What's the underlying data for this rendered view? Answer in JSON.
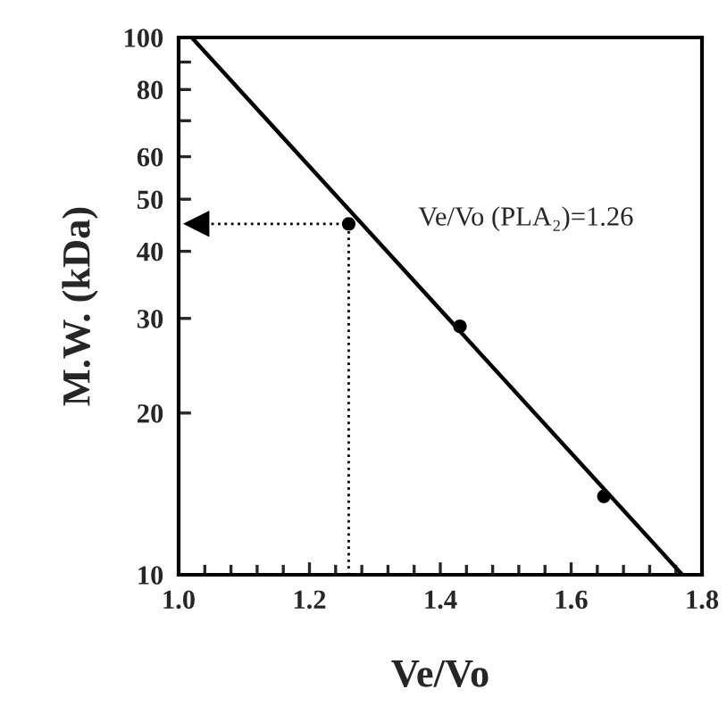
{
  "chart_data": {
    "type": "scatter",
    "xlabel": "Ve/Vo",
    "ylabel": "M.W. (kDa)",
    "log": "y",
    "marker": "circle",
    "grid": false,
    "legend": false,
    "series": [
      {
        "color": "#000000",
        "x": [
          1.26,
          1.43,
          1.65
        ],
        "values": [
          45,
          29,
          14
        ]
      },
      {
        "type": "line",
        "color": "#000000",
        "x": [
          1.02,
          1.77
        ],
        "values": [
          100,
          10
        ],
        "line_style": "solid",
        "marker": "none"
      }
    ],
    "annotations": [
      {
        "text": "Ve/Vo (PLA₂)=1.26",
        "x": 1.26,
        "y": 45
      }
    ],
    "xlim": [
      1.0,
      1.8
    ],
    "xticks": [
      {
        "value": 1.0,
        "label": "1.0"
      },
      1.2,
      1.4,
      1.6,
      1.8
    ],
    "ylim": [
      10,
      100
    ],
    "yticks": [
      10,
      20,
      30,
      40,
      50,
      60,
      {
        "value": 70,
        "label": null
      },
      80,
      {
        "value": 90,
        "label": null
      },
      100
    ]
  }
}
